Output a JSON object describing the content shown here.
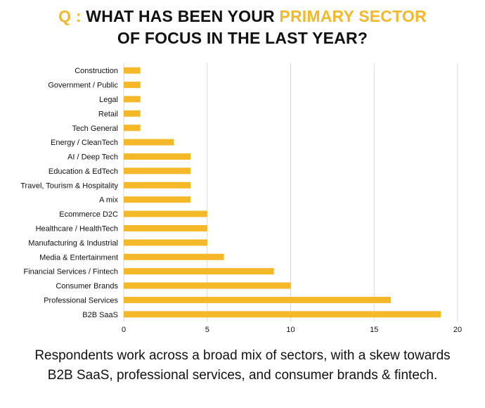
{
  "title": {
    "prefix": "Q :",
    "line1_pre": "WHAT HAS BEEN YOUR",
    "line1_accent": "PRIMARY SECTOR",
    "line2": "OF FOCUS IN THE LAST YEAR?"
  },
  "caption": "Respondents work across a broad mix of sectors, with a skew towards B2B SaaS, professional services, and consumer brands & fintech.",
  "colors": {
    "accent": "#f5b829",
    "bar": "#f5b829",
    "grid": "#d9d9d9",
    "text": "#111111"
  },
  "chart_data": {
    "type": "bar",
    "orientation": "horizontal",
    "categories": [
      "Construction",
      "Government / Public",
      "Legal",
      "Retail",
      "Tech General",
      "Energy / CleanTech",
      "AI / Deep Tech",
      "Education & EdTech",
      "Travel, Tourism & Hospitality",
      "A mix",
      "Ecommerce D2C",
      "Healthcare / HealthTech",
      "Manufacturing & Industrial",
      "Media & Entertainment",
      "Financial Services / Fintech",
      "Consumer Brands",
      "Professional Services",
      "B2B SaaS"
    ],
    "values": [
      1,
      1,
      1,
      1,
      1,
      3,
      4,
      4,
      4,
      4,
      5,
      5,
      5,
      6,
      9,
      10,
      16,
      19
    ],
    "xlim": [
      0,
      20
    ],
    "xticks": [
      "0",
      "5",
      "10",
      "15",
      "20"
    ],
    "grid": "vertical",
    "title": "",
    "xlabel": "",
    "ylabel": ""
  }
}
